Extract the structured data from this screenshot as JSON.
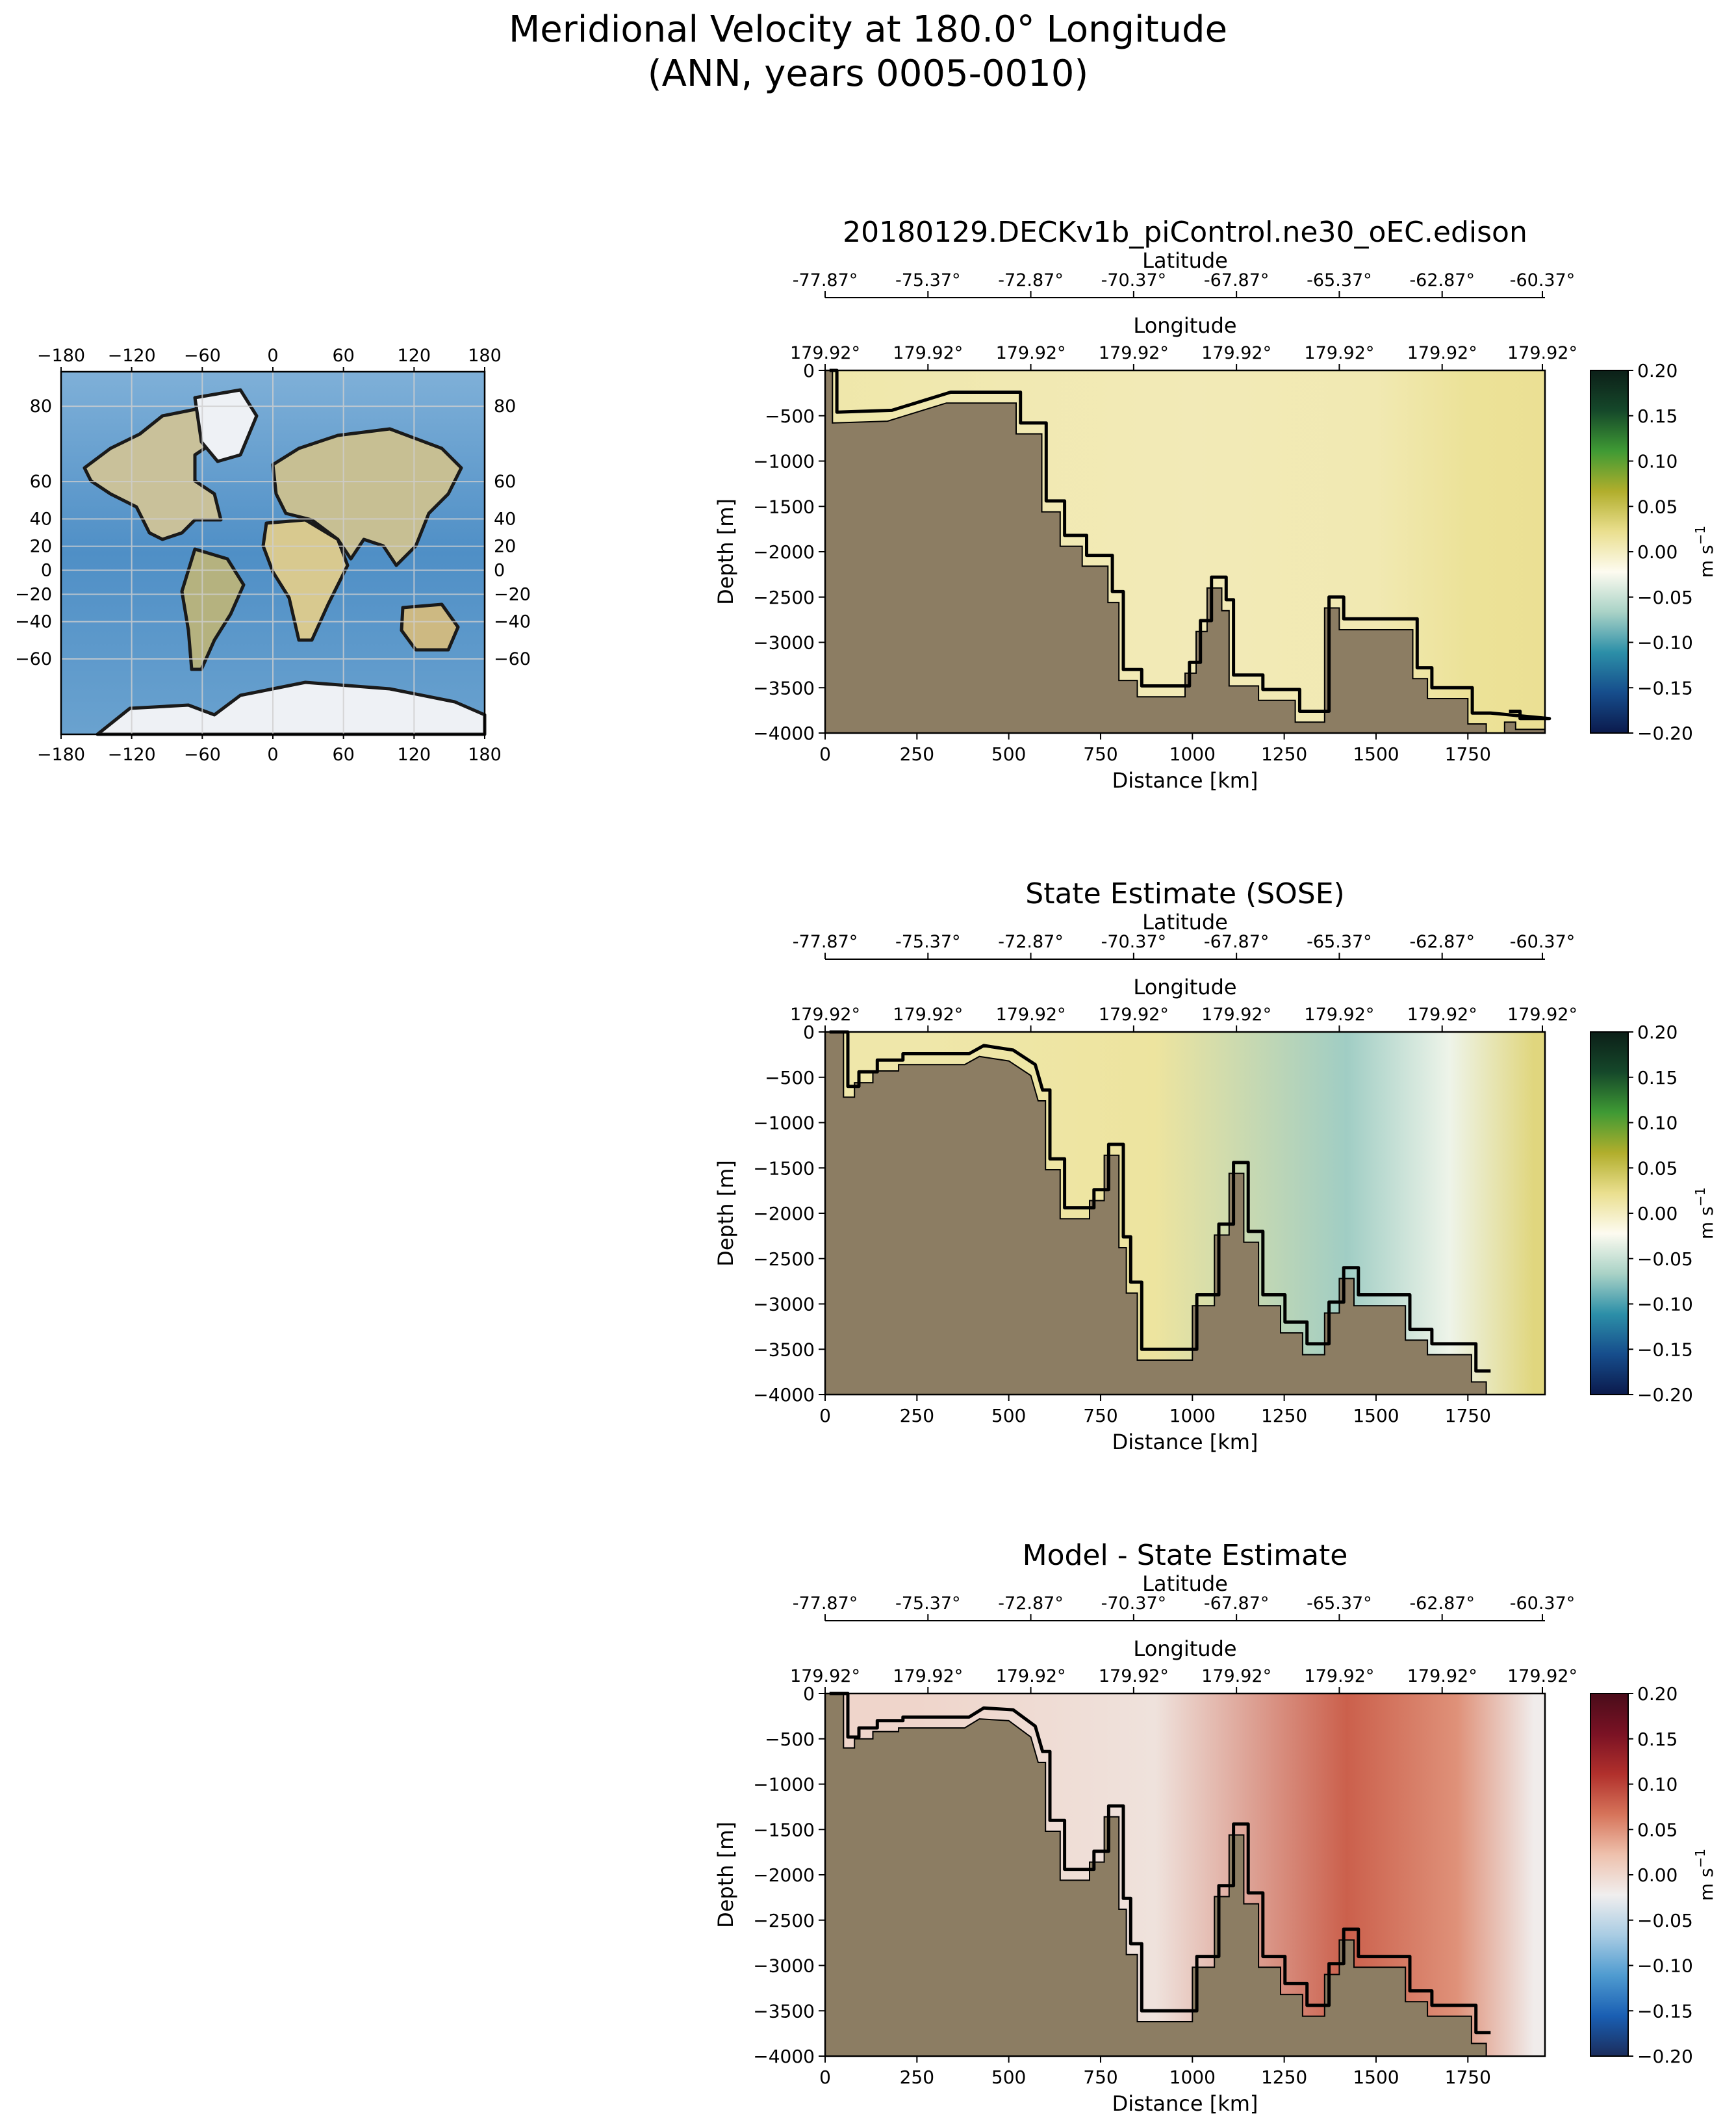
{
  "figure": {
    "title_line1": "Meridional Velocity at 180.0° Longitude",
    "title_line2": "(ANN, years 0005-0010)"
  },
  "colors": {
    "land": "#8c7d63",
    "contour": "#000000",
    "ocean_map": "#5f97c4"
  },
  "inset_map": {
    "projection": "PlateCarree",
    "lon_ticks": [
      "−180",
      "−120",
      "−60",
      "0",
      "60",
      "120",
      "180"
    ],
    "lat_ticks_left": [
      "80",
      "60",
      "40",
      "20",
      "0",
      "−20",
      "−40",
      "−60"
    ],
    "lat_ticks_right": [
      "80",
      "60",
      "40",
      "20",
      "0",
      "−20",
      "−40",
      "−60"
    ],
    "lat_values": [
      80,
      60,
      40,
      20,
      0,
      -20,
      -40,
      -60
    ]
  },
  "chart_data": [
    {
      "type": "heatmap",
      "id": "model",
      "title": "20180129.DECKv1b_piControl.ne30_oEC.edison",
      "xlabel": "Distance [km]",
      "ylabel": "Depth [m]",
      "xlim": [
        0,
        1960
      ],
      "ylim": [
        -4000,
        0
      ],
      "x_ticks": [
        "0",
        "250",
        "500",
        "750",
        "1000",
        "1250",
        "1500",
        "1750"
      ],
      "y_ticks": [
        "0",
        "−500",
        "−1000",
        "−1500",
        "−2000",
        "−2500",
        "−3000",
        "−3500",
        "−4000"
      ],
      "lat_label": "Latitude",
      "lat_ticks": [
        "-77.87°",
        "-75.37°",
        "-72.87°",
        "-70.37°",
        "-67.87°",
        "-65.37°",
        "-62.87°",
        "-60.37°"
      ],
      "lon_label": "Longitude",
      "lon_ticks": [
        "179.92°",
        "179.92°",
        "179.92°",
        "179.92°",
        "179.92°",
        "179.92°",
        "179.92°",
        "179.92°"
      ],
      "colorbar": {
        "colormap": "gist_earth-like (navy-teal-white-yellow-green)",
        "range": [
          -0.2,
          0.2
        ],
        "ticks": [
          "0.20",
          "0.15",
          "0.10",
          "0.05",
          "0.00",
          "−0.05",
          "−0.10",
          "−0.15",
          "−0.20"
        ],
        "label": "m s",
        "label_exp": "−1",
        "stops": [
          "#0b1a4c",
          "#164d8c",
          "#2c8fa8",
          "#a9d2c6",
          "#fdfbf0",
          "#eadf8f",
          "#b1ae2c",
          "#3f9a34",
          "#15482a",
          "#0c1f18"
        ]
      },
      "zero_contour": true,
      "field_description": "weak positive (yellowish) values nearly everywhere",
      "values_profile": [
        {
          "distance": 0,
          "velocity": 0.01
        },
        {
          "distance": 500,
          "velocity": 0.006
        },
        {
          "distance": 1000,
          "velocity": 0.004
        },
        {
          "distance": 1500,
          "velocity": 0.006
        },
        {
          "distance": 1750,
          "velocity": 0.018
        },
        {
          "distance": 1960,
          "velocity": 0.02
        }
      ],
      "bathymetry": [
        [
          0,
          0
        ],
        [
          20,
          0
        ],
        [
          20,
          -580
        ],
        [
          170,
          -560
        ],
        [
          330,
          -360
        ],
        [
          520,
          -360
        ],
        [
          520,
          -700
        ],
        [
          590,
          -700
        ],
        [
          590,
          -1560
        ],
        [
          640,
          -1560
        ],
        [
          640,
          -1940
        ],
        [
          700,
          -1940
        ],
        [
          700,
          -2160
        ],
        [
          770,
          -2160
        ],
        [
          770,
          -2560
        ],
        [
          800,
          -2560
        ],
        [
          800,
          -3420
        ],
        [
          850,
          -3420
        ],
        [
          850,
          -3600
        ],
        [
          980,
          -3600
        ],
        [
          980,
          -3340
        ],
        [
          1010,
          -3340
        ],
        [
          1010,
          -2880
        ],
        [
          1040,
          -2880
        ],
        [
          1040,
          -2400
        ],
        [
          1080,
          -2400
        ],
        [
          1080,
          -2650
        ],
        [
          1100,
          -2650
        ],
        [
          1100,
          -3480
        ],
        [
          1180,
          -3480
        ],
        [
          1180,
          -3640
        ],
        [
          1280,
          -3640
        ],
        [
          1280,
          -3880
        ],
        [
          1360,
          -3880
        ],
        [
          1360,
          -2620
        ],
        [
          1400,
          -2620
        ],
        [
          1400,
          -2860
        ],
        [
          1600,
          -2860
        ],
        [
          1600,
          -3400
        ],
        [
          1640,
          -3400
        ],
        [
          1640,
          -3620
        ],
        [
          1750,
          -3620
        ],
        [
          1750,
          -3900
        ],
        [
          1800,
          -3900
        ],
        [
          1800,
          -4000
        ],
        [
          1960,
          -4000
        ],
        [
          1960,
          -3960
        ],
        [
          1880,
          -3960
        ],
        [
          1880,
          -3880
        ],
        [
          1850,
          -3880
        ],
        [
          1850,
          -4000
        ],
        [
          0,
          -4000
        ]
      ]
    },
    {
      "type": "heatmap",
      "id": "sose",
      "title": "State Estimate (SOSE)",
      "xlabel": "Distance [km]",
      "ylabel": "Depth [m]",
      "xlim": [
        0,
        1960
      ],
      "ylim": [
        -4000,
        0
      ],
      "x_ticks": [
        "0",
        "250",
        "500",
        "750",
        "1000",
        "1250",
        "1500",
        "1750"
      ],
      "y_ticks": [
        "0",
        "−500",
        "−1000",
        "−1500",
        "−2000",
        "−2500",
        "−3000",
        "−3500",
        "−4000"
      ],
      "lat_label": "Latitude",
      "lat_ticks": [
        "-77.87°",
        "-75.37°",
        "-72.87°",
        "-70.37°",
        "-67.87°",
        "-65.37°",
        "-62.87°",
        "-60.37°"
      ],
      "lon_label": "Longitude",
      "lon_ticks": [
        "179.92°",
        "179.92°",
        "179.92°",
        "179.92°",
        "179.92°",
        "179.92°",
        "179.92°",
        "179.92°"
      ],
      "colorbar": {
        "colormap": "gist_earth-like (navy-teal-white-yellow-green)",
        "range": [
          -0.2,
          0.2
        ],
        "ticks": [
          "0.20",
          "0.15",
          "0.10",
          "0.05",
          "0.00",
          "−0.05",
          "−0.10",
          "−0.15",
          "−0.20"
        ],
        "label": "m s",
        "label_exp": "−1",
        "stops": [
          "#0b1a4c",
          "#164d8c",
          "#2c8fa8",
          "#a9d2c6",
          "#fdfbf0",
          "#eadf8f",
          "#b1ae2c",
          "#3f9a34",
          "#15482a",
          "#0c1f18"
        ]
      },
      "zero_contour": true,
      "field_description": "alternating weak jets; strongest negative core near 1420 km, upper 600 m",
      "values_profile": [
        {
          "distance": 250,
          "velocity": 0.01
        },
        {
          "distance": 900,
          "velocity": 0.015
        },
        {
          "distance": 1420,
          "velocity": -0.07
        },
        {
          "distance": 1700,
          "velocity": -0.03
        },
        {
          "distance": 1930,
          "velocity": 0.03
        }
      ],
      "bathymetry": [
        [
          0,
          0
        ],
        [
          50,
          0
        ],
        [
          50,
          -720
        ],
        [
          80,
          -720
        ],
        [
          80,
          -560
        ],
        [
          130,
          -560
        ],
        [
          130,
          -430
        ],
        [
          200,
          -430
        ],
        [
          200,
          -360
        ],
        [
          380,
          -360
        ],
        [
          420,
          -270
        ],
        [
          500,
          -320
        ],
        [
          560,
          -480
        ],
        [
          580,
          -760
        ],
        [
          600,
          -760
        ],
        [
          600,
          -1520
        ],
        [
          640,
          -1520
        ],
        [
          640,
          -2060
        ],
        [
          720,
          -2060
        ],
        [
          720,
          -1860
        ],
        [
          760,
          -1860
        ],
        [
          760,
          -1360
        ],
        [
          800,
          -1360
        ],
        [
          800,
          -2380
        ],
        [
          820,
          -2380
        ],
        [
          820,
          -2880
        ],
        [
          850,
          -2880
        ],
        [
          850,
          -3620
        ],
        [
          1000,
          -3620
        ],
        [
          1000,
          -3020
        ],
        [
          1060,
          -3020
        ],
        [
          1060,
          -2240
        ],
        [
          1100,
          -2240
        ],
        [
          1100,
          -1560
        ],
        [
          1140,
          -1560
        ],
        [
          1140,
          -2320
        ],
        [
          1180,
          -2320
        ],
        [
          1180,
          -3020
        ],
        [
          1240,
          -3020
        ],
        [
          1240,
          -3320
        ],
        [
          1300,
          -3320
        ],
        [
          1300,
          -3560
        ],
        [
          1360,
          -3560
        ],
        [
          1360,
          -3100
        ],
        [
          1400,
          -3100
        ],
        [
          1400,
          -2720
        ],
        [
          1440,
          -2720
        ],
        [
          1440,
          -3020
        ],
        [
          1580,
          -3020
        ],
        [
          1580,
          -3400
        ],
        [
          1640,
          -3400
        ],
        [
          1640,
          -3560
        ],
        [
          1760,
          -3560
        ],
        [
          1760,
          -3860
        ],
        [
          1800,
          -3860
        ],
        [
          1800,
          -4000
        ],
        [
          0,
          -4000
        ]
      ]
    },
    {
      "type": "heatmap",
      "id": "bias",
      "title": "Model - State Estimate",
      "xlabel": "Distance [km]",
      "ylabel": "Depth [m]",
      "xlim": [
        0,
        1960
      ],
      "ylim": [
        -4000,
        0
      ],
      "x_ticks": [
        "0",
        "250",
        "500",
        "750",
        "1000",
        "1250",
        "1500",
        "1750"
      ],
      "y_ticks": [
        "0",
        "−500",
        "−1000",
        "−1500",
        "−2000",
        "−2500",
        "−3000",
        "−3500",
        "−4000"
      ],
      "lat_label": "Latitude",
      "lat_ticks": [
        "-77.87°",
        "-75.37°",
        "-72.87°",
        "-70.37°",
        "-67.87°",
        "-65.37°",
        "-62.87°",
        "-60.37°"
      ],
      "lon_label": "Longitude",
      "lon_ticks": [
        "179.92°",
        "179.92°",
        "179.92°",
        "179.92°",
        "179.92°",
        "179.92°",
        "179.92°",
        "179.92°"
      ],
      "colorbar": {
        "colormap": "RdBu_r",
        "range": [
          -0.2,
          0.2
        ],
        "ticks": [
          "0.20",
          "0.15",
          "0.10",
          "0.05",
          "0.00",
          "−0.05",
          "−0.10",
          "−0.15",
          "−0.20"
        ],
        "label": "m s",
        "label_exp": "−1",
        "stops": [
          "#1b2d5c",
          "#1a5fb3",
          "#4f9bd0",
          "#a9cce3",
          "#f0eeee",
          "#eec1ad",
          "#d6745a",
          "#b1302c",
          "#7a1224",
          "#4a0c1a"
        ]
      },
      "zero_contour": true,
      "field_description": "positive differences (reddish) in upper 700 m near 1400-1800 km, weak elsewhere",
      "values_profile": [
        {
          "distance": 250,
          "velocity": 0.002
        },
        {
          "distance": 900,
          "velocity": -0.01
        },
        {
          "distance": 1420,
          "velocity": 0.08
        },
        {
          "distance": 1720,
          "velocity": 0.05
        },
        {
          "distance": 1930,
          "velocity": -0.02
        }
      ],
      "bathymetry": [
        [
          0,
          0
        ],
        [
          50,
          0
        ],
        [
          50,
          -600
        ],
        [
          80,
          -600
        ],
        [
          80,
          -500
        ],
        [
          130,
          -500
        ],
        [
          130,
          -420
        ],
        [
          200,
          -420
        ],
        [
          200,
          -380
        ],
        [
          380,
          -380
        ],
        [
          420,
          -280
        ],
        [
          500,
          -300
        ],
        [
          560,
          -480
        ],
        [
          580,
          -760
        ],
        [
          600,
          -760
        ],
        [
          600,
          -1520
        ],
        [
          640,
          -1520
        ],
        [
          640,
          -2060
        ],
        [
          720,
          -2060
        ],
        [
          720,
          -1860
        ],
        [
          760,
          -1860
        ],
        [
          760,
          -1360
        ],
        [
          800,
          -1360
        ],
        [
          800,
          -2380
        ],
        [
          820,
          -2380
        ],
        [
          820,
          -2880
        ],
        [
          850,
          -2880
        ],
        [
          850,
          -3620
        ],
        [
          1000,
          -3620
        ],
        [
          1000,
          -3020
        ],
        [
          1060,
          -3020
        ],
        [
          1060,
          -2240
        ],
        [
          1100,
          -2240
        ],
        [
          1100,
          -1560
        ],
        [
          1140,
          -1560
        ],
        [
          1140,
          -2320
        ],
        [
          1180,
          -2320
        ],
        [
          1180,
          -3020
        ],
        [
          1240,
          -3020
        ],
        [
          1240,
          -3320
        ],
        [
          1300,
          -3320
        ],
        [
          1300,
          -3560
        ],
        [
          1360,
          -3560
        ],
        [
          1360,
          -3100
        ],
        [
          1400,
          -3100
        ],
        [
          1400,
          -2720
        ],
        [
          1440,
          -2720
        ],
        [
          1440,
          -3020
        ],
        [
          1580,
          -3020
        ],
        [
          1580,
          -3400
        ],
        [
          1640,
          -3400
        ],
        [
          1640,
          -3560
        ],
        [
          1760,
          -3560
        ],
        [
          1760,
          -3860
        ],
        [
          1800,
          -3860
        ],
        [
          1800,
          -4000
        ],
        [
          0,
          -4000
        ]
      ]
    }
  ]
}
